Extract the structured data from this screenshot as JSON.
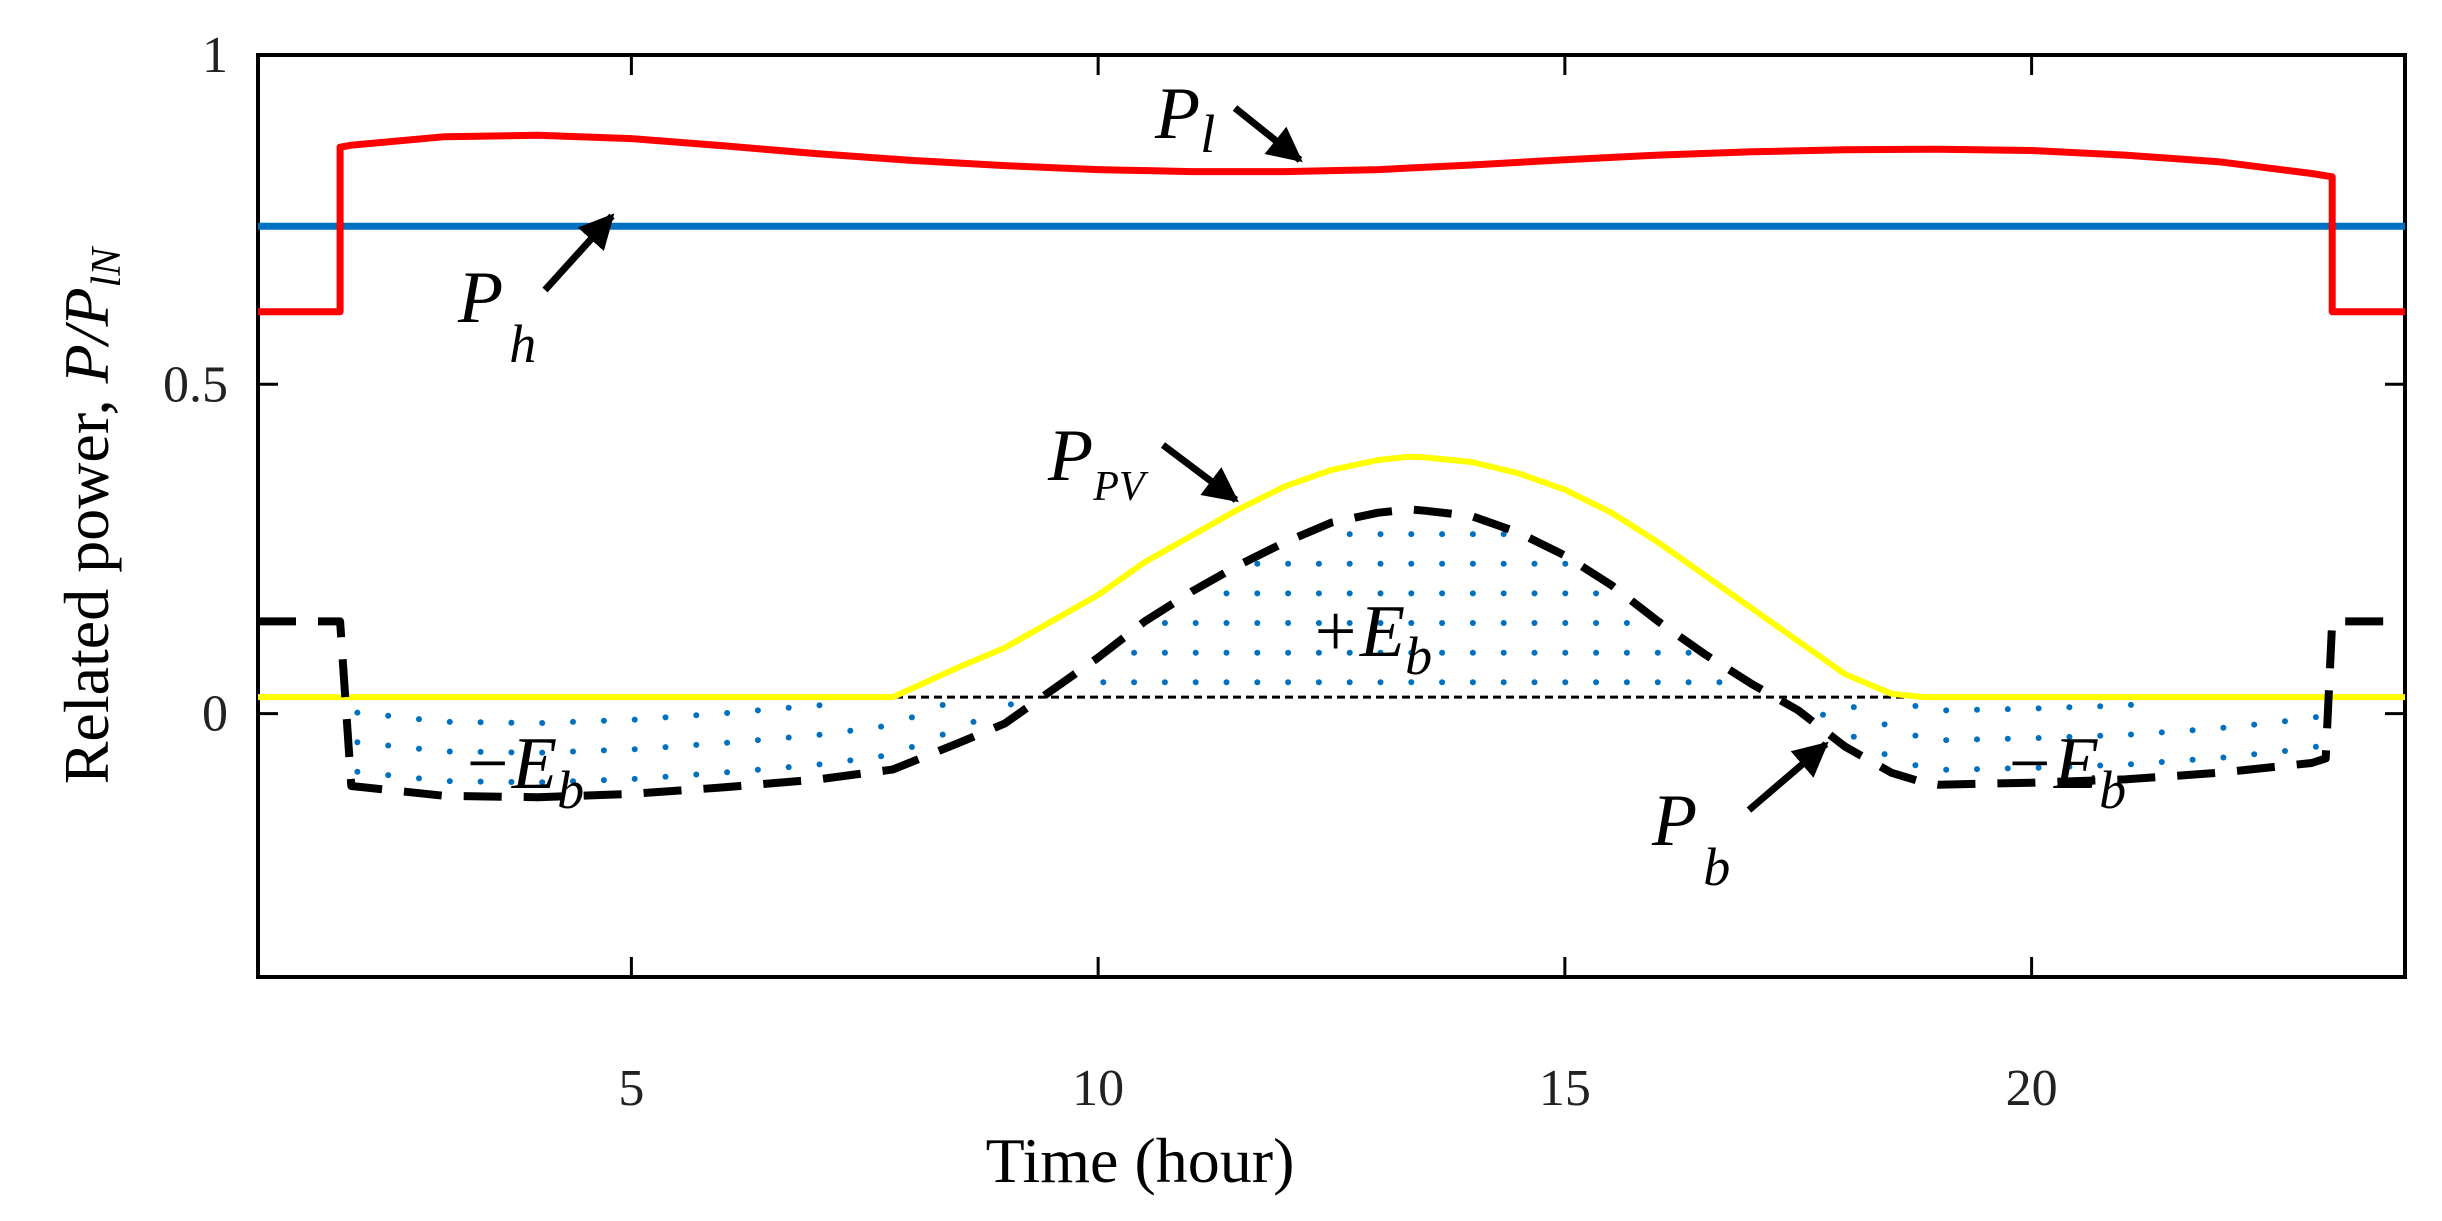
{
  "chart_data": {
    "type": "line",
    "title": "",
    "xlabel": "Time (hour)",
    "ylabel": {
      "prefix": "Related power, ",
      "p": "P",
      "slash": "/",
      "p2": "P",
      "sub": "lN"
    },
    "xlim": [
      1,
      24
    ],
    "ylim": [
      -0.4,
      1.0
    ],
    "xticks": [
      5,
      10,
      15,
      20
    ],
    "yticks": [
      0,
      0.5,
      1
    ],
    "ytick_labels": [
      "0",
      "0.5",
      "1"
    ],
    "grid": false,
    "series": [
      {
        "name": "P_l",
        "color": "#ff0000",
        "style": "solid",
        "x": [
          1,
          1.88,
          1.88,
          2.0,
          3.0,
          4.0,
          5.0,
          6.0,
          7.0,
          8.0,
          9.0,
          10.0,
          11.0,
          12.0,
          13.0,
          14.0,
          15.0,
          16.0,
          17.0,
          18.0,
          19.0,
          20.0,
          21.0,
          22.0,
          23.0,
          23.22,
          23.22,
          24
        ],
        "y": [
          0.61,
          0.61,
          0.86,
          0.863,
          0.876,
          0.878,
          0.873,
          0.862,
          0.85,
          0.84,
          0.832,
          0.826,
          0.823,
          0.823,
          0.826,
          0.833,
          0.841,
          0.848,
          0.853,
          0.856,
          0.857,
          0.855,
          0.848,
          0.838,
          0.82,
          0.815,
          0.61,
          0.61
        ]
      },
      {
        "name": "P_h",
        "color": "#0070c0",
        "style": "solid",
        "x": [
          1,
          24
        ],
        "y": [
          0.74,
          0.74
        ]
      },
      {
        "name": "P_PV",
        "color": "#ffff00",
        "style": "solid",
        "x": [
          1,
          7.8,
          8.5,
          9.0,
          9.5,
          10.0,
          10.5,
          11.0,
          11.5,
          12.0,
          12.5,
          13.0,
          13.33,
          13.5,
          14.0,
          14.5,
          15.0,
          15.5,
          16.0,
          16.5,
          17.0,
          17.5,
          18.0,
          18.5,
          18.85,
          24
        ],
        "y": [
          0.025,
          0.025,
          0.07,
          0.1,
          0.14,
          0.18,
          0.23,
          0.27,
          0.31,
          0.345,
          0.37,
          0.385,
          0.39,
          0.389,
          0.382,
          0.365,
          0.34,
          0.305,
          0.26,
          0.21,
          0.16,
          0.11,
          0.06,
          0.03,
          0.025,
          0.025
        ]
      },
      {
        "name": "P_b",
        "color": "#000000",
        "style": "dashed",
        "x": [
          1,
          1.8,
          1.88,
          2.0,
          3.0,
          4.0,
          5.0,
          6.0,
          7.0,
          7.8,
          8.5,
          9.0,
          9.5,
          10.0,
          10.5,
          11.0,
          11.5,
          12.0,
          12.5,
          13.0,
          13.33,
          13.5,
          14.0,
          14.5,
          15.0,
          15.5,
          16.0,
          16.5,
          17.0,
          17.5,
          18.0,
          18.5,
          18.85,
          19.0,
          20.0,
          21.0,
          22.0,
          23.0,
          23.15,
          23.22,
          23.3,
          24
        ],
        "y": [
          0.14,
          0.14,
          0.14,
          -0.11,
          -0.125,
          -0.127,
          -0.122,
          -0.112,
          -0.1,
          -0.085,
          -0.045,
          -0.015,
          0.035,
          0.085,
          0.14,
          0.185,
          0.225,
          0.26,
          0.29,
          0.305,
          0.31,
          0.308,
          0.3,
          0.275,
          0.24,
          0.195,
          0.14,
          0.09,
          0.045,
          0.005,
          -0.05,
          -0.09,
          -0.105,
          -0.108,
          -0.105,
          -0.1,
          -0.09,
          -0.075,
          -0.068,
          0.14,
          0.14,
          0.14
        ]
      },
      {
        "name": "baseline",
        "color": "#000000",
        "style": "dotted",
        "x": [
          1,
          24
        ],
        "y": [
          0.025,
          0.025
        ]
      }
    ],
    "annotations": [
      {
        "id": "pl",
        "main": "P",
        "sub": "l"
      },
      {
        "id": "ph",
        "main": "P",
        "sub": "h"
      },
      {
        "id": "ppv",
        "main": "P",
        "sub": "PV"
      },
      {
        "id": "pb",
        "main": "P",
        "sub": "b"
      },
      {
        "id": "eb-plus",
        "main": "+E",
        "sub": "b"
      },
      {
        "id": "eb-minus-left",
        "main": "−E",
        "sub": "b"
      },
      {
        "id": "eb-minus-right",
        "main": "−E",
        "sub": "b"
      }
    ],
    "shaded_regions": [
      {
        "label": "+E_b",
        "color": "#0070c0",
        "x_range": [
          8.9,
          17.6
        ]
      },
      {
        "label": "-E_b",
        "color": "#0070c0",
        "x_range": [
          1.9,
          8.9
        ]
      },
      {
        "label": "-E_b",
        "color": "#0070c0",
        "x_range": [
          17.6,
          23.2
        ]
      }
    ]
  }
}
